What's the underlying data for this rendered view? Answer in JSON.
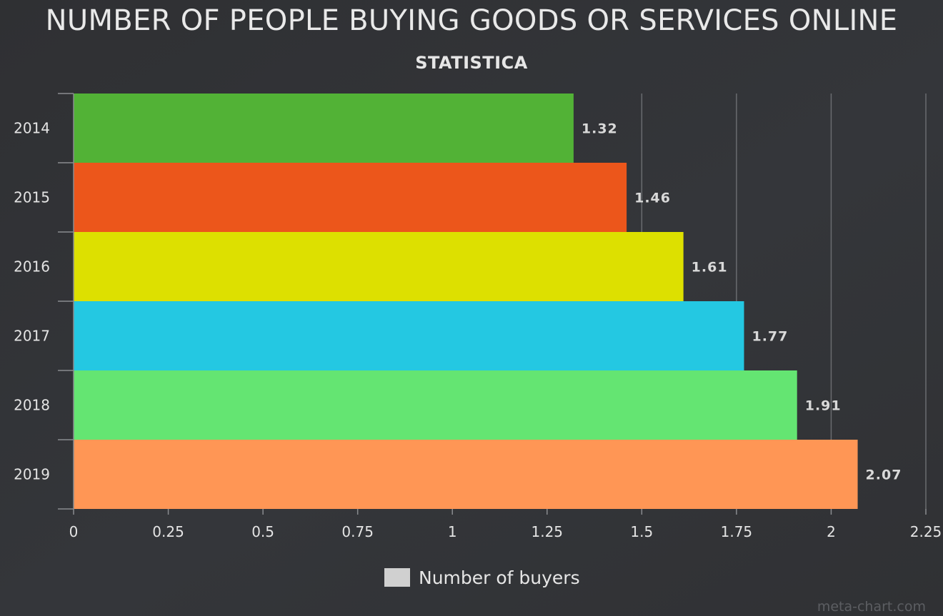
{
  "chart_data": {
    "type": "bar",
    "orientation": "horizontal",
    "title": "NUMBER OF PEOPLE BUYING GOODS OR SERVICES ONLINE",
    "subtitle": "STATISTICA",
    "categories": [
      "2014",
      "2015",
      "2016",
      "2017",
      "2018",
      "2019"
    ],
    "series": [
      {
        "name": "Number of buyers",
        "values": [
          1.32,
          1.46,
          1.61,
          1.77,
          1.91,
          2.07
        ],
        "data_labels": [
          "1.32",
          "1.46",
          "1.61",
          "1.77",
          "1.91",
          "2.07"
        ]
      }
    ],
    "bar_colors": [
      "#52b236",
      "#ec561b",
      "#dde000",
      "#24c8e2",
      "#64e572",
      "#ff9655"
    ],
    "xlim": [
      0,
      2.25
    ],
    "x_ticks": [
      "0",
      "0.25",
      "0.5",
      "0.75",
      "1",
      "1.25",
      "1.5",
      "1.75",
      "2",
      "2.25"
    ],
    "xlabel": "",
    "ylabel": "",
    "grid": true,
    "legend": {
      "placement": "bottom",
      "label": "Number of buyers",
      "swatch_color": "#d0d0d0"
    }
  },
  "watermark": "meta-chart.com"
}
